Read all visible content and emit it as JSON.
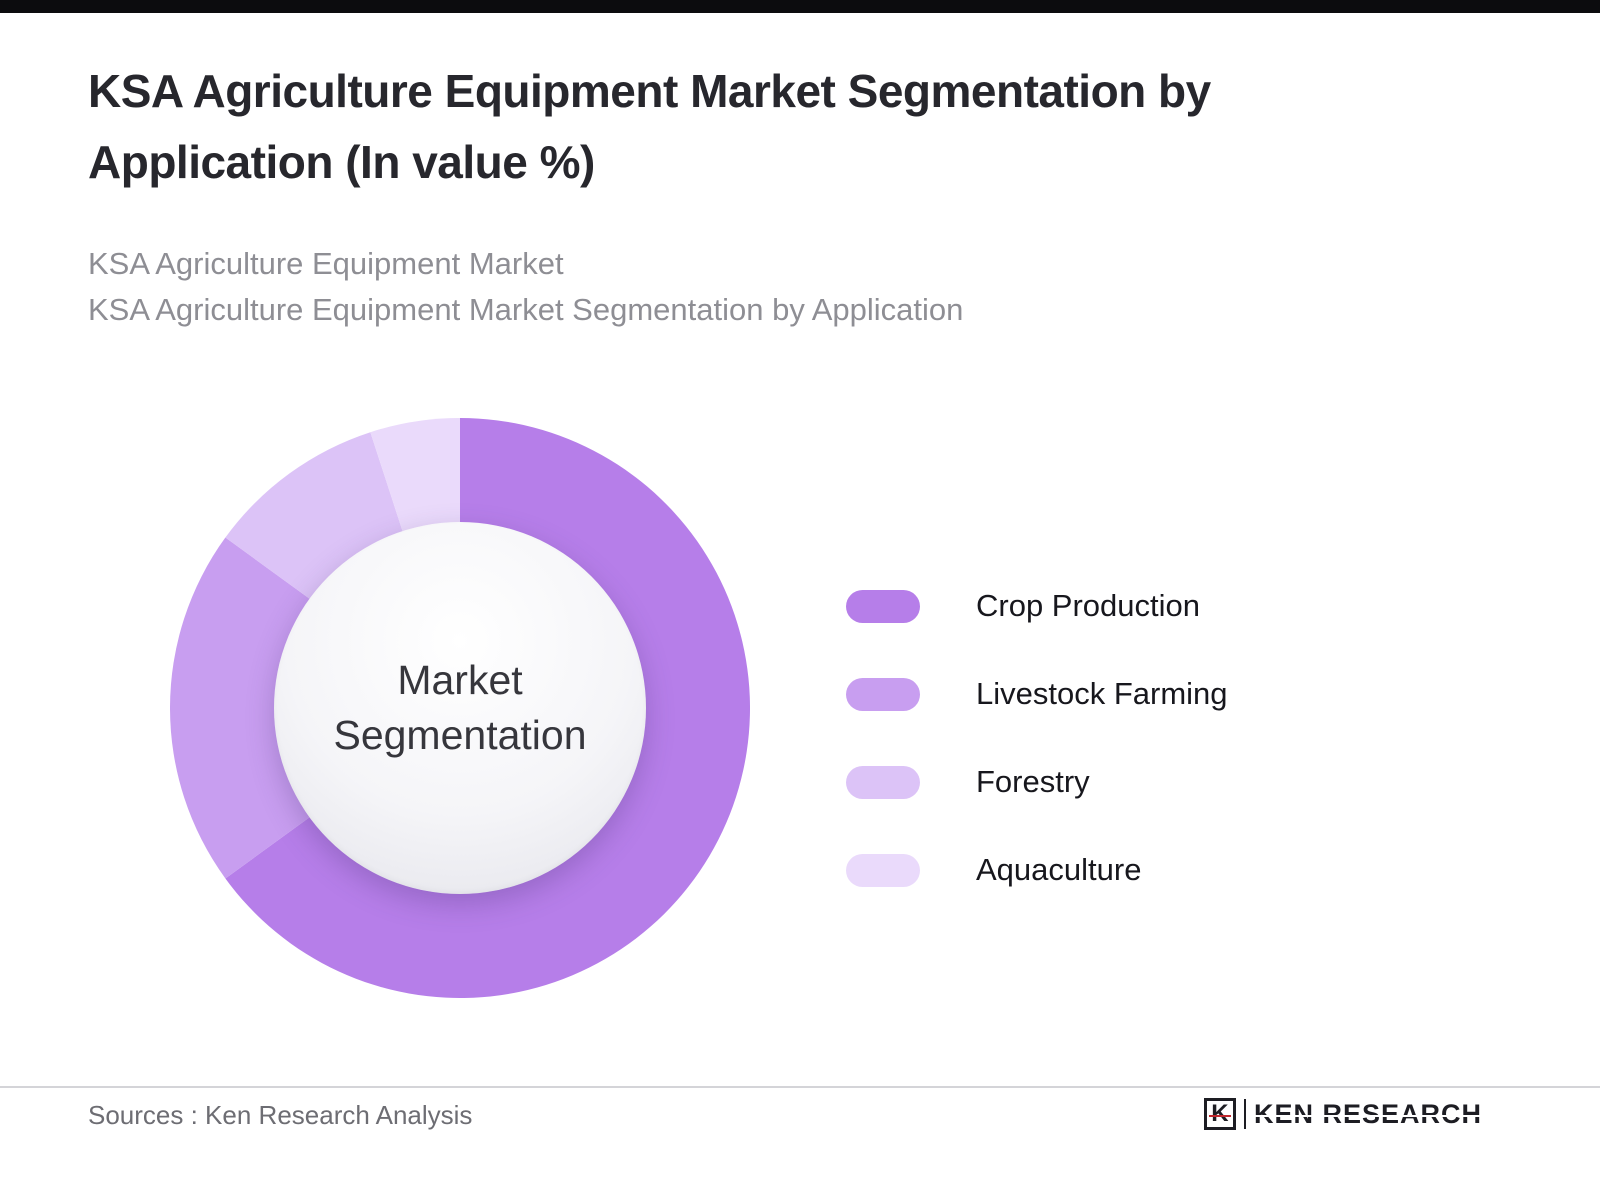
{
  "header": {
    "title_line1": "KSA Agriculture Equipment Market Segmentation by",
    "title_line2": "Application (In value %)",
    "subtitle_line1": "KSA Agriculture Equipment Market",
    "subtitle_line2": "KSA Agriculture Equipment Market Segmentation by Application"
  },
  "chart_data": {
    "type": "pie",
    "variant": "donut",
    "center_label": "Market Segmentation",
    "categories": [
      "Crop Production",
      "Livestock Farming",
      "Forestry",
      "Aquaculture"
    ],
    "values": [
      65,
      20,
      10,
      5
    ],
    "colors": [
      "#b67ee9",
      "#c89ef0",
      "#dcc3f7",
      "#eadafb"
    ],
    "start_angle_deg": 0,
    "direction": "clockwise",
    "legend_position": "right",
    "title": "KSA Agriculture Equipment Market Segmentation by Application (In value %)"
  },
  "legend": {
    "items": [
      {
        "label": "Crop Production",
        "color": "#b67ee9"
      },
      {
        "label": "Livestock Farming",
        "color": "#c89ef0"
      },
      {
        "label": "Forestry",
        "color": "#dcc3f7"
      },
      {
        "label": "Aquaculture",
        "color": "#eadafb"
      }
    ]
  },
  "footer": {
    "sources": "Sources : Ken Research Analysis",
    "brand_initial": "K",
    "brand_name": "KEN RESEARCH"
  }
}
